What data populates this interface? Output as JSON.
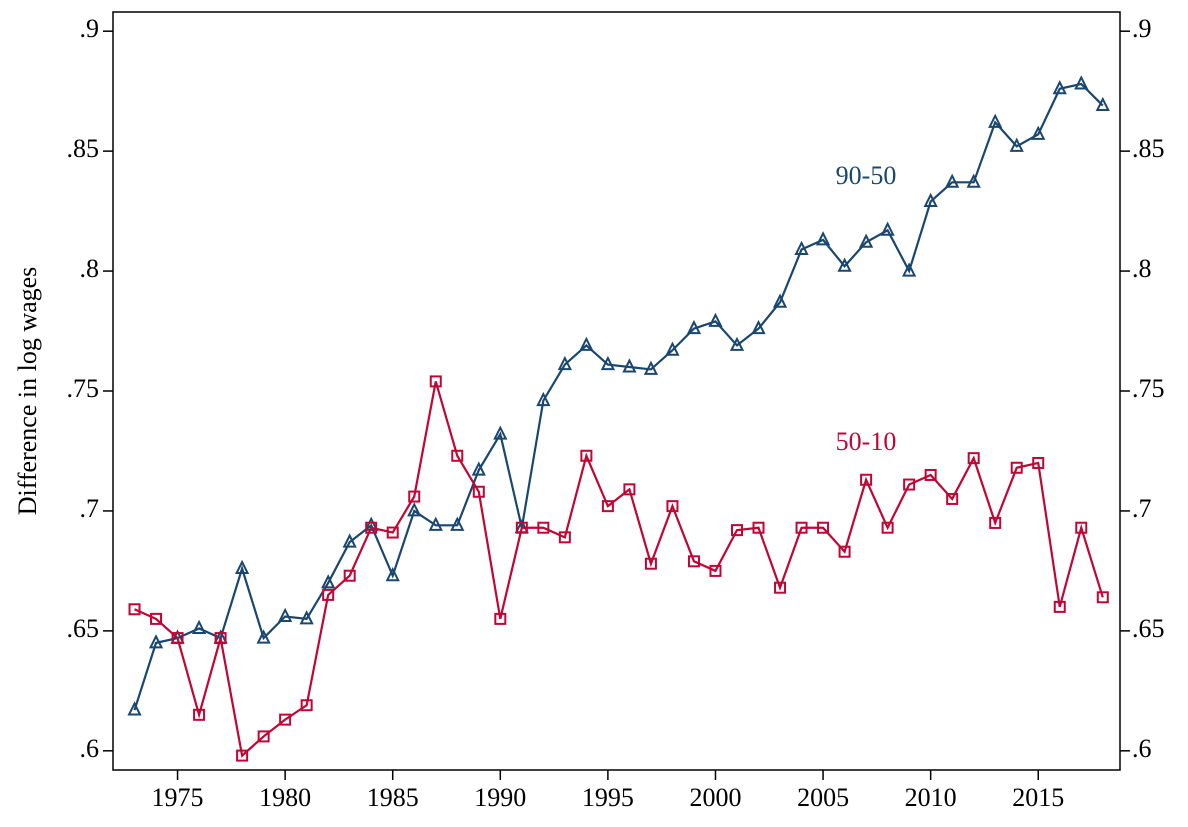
{
  "chart_data": {
    "type": "line",
    "y_label": "Difference in log wages",
    "x": [
      1973,
      1974,
      1975,
      1976,
      1977,
      1978,
      1979,
      1980,
      1981,
      1982,
      1983,
      1984,
      1985,
      1986,
      1987,
      1988,
      1989,
      1990,
      1991,
      1992,
      1993,
      1994,
      1995,
      1996,
      1997,
      1998,
      1999,
      2000,
      2001,
      2002,
      2003,
      2004,
      2005,
      2006,
      2007,
      2008,
      2009,
      2010,
      2011,
      2012,
      2013,
      2014,
      2015,
      2016,
      2017,
      2018
    ],
    "series": [
      {
        "name": "90-50",
        "color": "#1a476f",
        "marker": "triangle",
        "values": [
          0.617,
          0.645,
          0.647,
          0.651,
          0.647,
          0.676,
          0.647,
          0.656,
          0.655,
          0.67,
          0.687,
          0.694,
          0.673,
          0.7,
          0.694,
          0.694,
          0.717,
          0.732,
          0.693,
          0.746,
          0.761,
          0.769,
          0.761,
          0.76,
          0.759,
          0.767,
          0.776,
          0.779,
          0.769,
          0.776,
          0.787,
          0.809,
          0.813,
          0.802,
          0.812,
          0.817,
          0.8,
          0.829,
          0.837,
          0.837,
          0.862,
          0.852,
          0.857,
          0.876,
          0.878,
          0.869
        ]
      },
      {
        "name": "50-10",
        "color": "#c10534",
        "marker": "square",
        "values": [
          0.659,
          0.655,
          0.647,
          0.615,
          0.647,
          0.598,
          0.606,
          0.613,
          0.619,
          0.665,
          0.673,
          0.693,
          0.691,
          0.706,
          0.754,
          0.723,
          0.708,
          0.655,
          0.693,
          0.693,
          0.689,
          0.723,
          0.702,
          0.709,
          0.678,
          0.702,
          0.679,
          0.675,
          0.692,
          0.693,
          0.668,
          0.693,
          0.693,
          0.683,
          0.713,
          0.693,
          0.711,
          0.715,
          0.705,
          0.722,
          0.695,
          0.718,
          0.72,
          0.66,
          0.693,
          0.664
        ]
      }
    ],
    "xlim": [
      1972,
      2018.8
    ],
    "xticks": [
      1975,
      1980,
      1985,
      1990,
      1995,
      2000,
      2005,
      2010,
      2015
    ],
    "ylim": [
      0.592,
      0.908
    ],
    "yticks": [
      {
        "value": 0.6,
        "label": ".6"
      },
      {
        "value": 0.65,
        "label": ".65"
      },
      {
        "value": 0.7,
        "label": ".7"
      },
      {
        "value": 0.75,
        "label": ".75"
      },
      {
        "value": 0.8,
        "label": ".8"
      },
      {
        "value": 0.85,
        "label": ".85"
      },
      {
        "value": 0.9,
        "label": ".9"
      }
    ],
    "y2lim": [
      0.592,
      0.908
    ],
    "y2ticks": [
      {
        "value": 0.6,
        "label": ".6"
      },
      {
        "value": 0.65,
        "label": ".65"
      },
      {
        "value": 0.7,
        "label": ".7"
      },
      {
        "value": 0.75,
        "label": ".75"
      },
      {
        "value": 0.8,
        "label": ".8"
      },
      {
        "value": 0.85,
        "label": ".85"
      },
      {
        "value": 0.9,
        "label": ".9"
      }
    ],
    "grid": false
  }
}
